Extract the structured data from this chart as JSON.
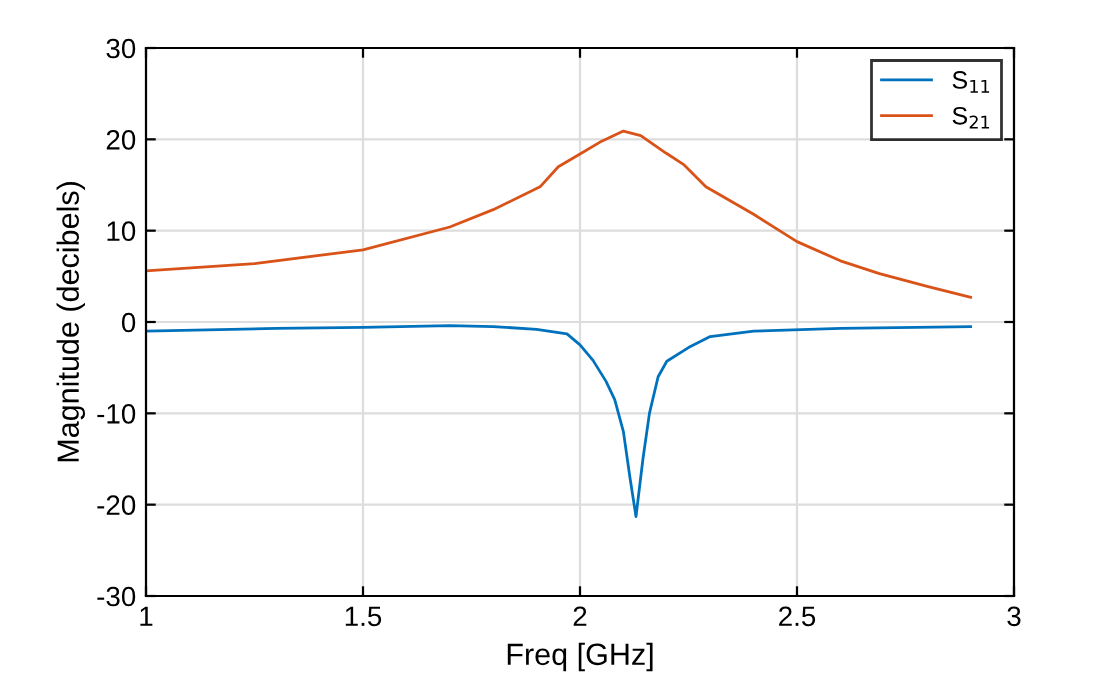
{
  "chart_data": {
    "type": "line",
    "xlabel": "Freq [GHz]",
    "ylabel": "Magnitude (decibels)",
    "xlim": [
      1,
      3
    ],
    "xticks": [
      1,
      1.5,
      2,
      2.5,
      3
    ],
    "ylim": [
      -30,
      30
    ],
    "yticks": [
      -30,
      -20,
      -10,
      0,
      10,
      20,
      30
    ],
    "grid": true,
    "legend": "top right",
    "series": [
      {
        "name": "S$_{11}$",
        "color": "#0072bd",
        "x": [
          1,
          1.3,
          1.5,
          1.7,
          1.8,
          1.9,
          1.97,
          2.0,
          2.03,
          2.06,
          2.08,
          2.1,
          2.115,
          2.129,
          2.145,
          2.16,
          2.18,
          2.2,
          2.25,
          2.3,
          2.4,
          2.6,
          2.9
        ],
        "values": [
          -1.0,
          -0.7,
          -0.6,
          -0.4,
          -0.5,
          -0.8,
          -1.3,
          -2.5,
          -4.2,
          -6.5,
          -8.5,
          -12,
          -17,
          -21.3,
          -15,
          -10,
          -6,
          -4.3,
          -2.8,
          -1.6,
          -1.0,
          -0.7,
          -0.5
        ]
      },
      {
        "name": "S$_{21}$",
        "color": "#d95319",
        "x": [
          1,
          1.25,
          1.5,
          1.7,
          1.8,
          1.908,
          1.95,
          2.0,
          2.05,
          2.1,
          2.14,
          2.198,
          2.24,
          2.29,
          2.4,
          2.5,
          2.6,
          2.69,
          2.8,
          2.9
        ],
        "values": [
          5.6,
          6.4,
          7.9,
          10.4,
          12.3,
          14.8,
          17.0,
          18.4,
          19.8,
          20.9,
          20.4,
          18.5,
          17.2,
          14.8,
          11.8,
          8.8,
          6.7,
          5.3,
          3.9,
          2.7
        ]
      }
    ]
  }
}
